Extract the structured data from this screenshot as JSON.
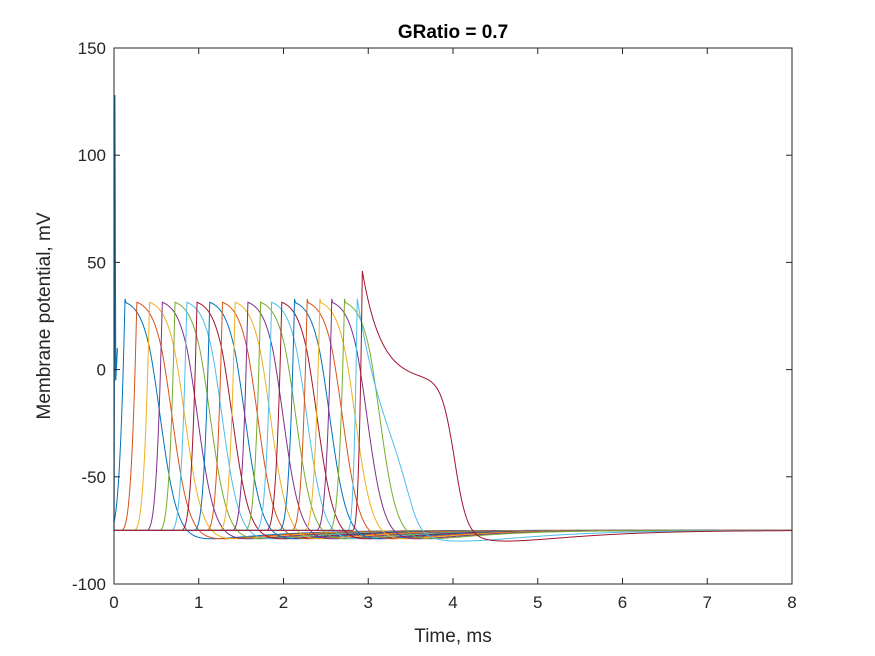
{
  "chart_data": {
    "type": "line",
    "title": "GRatio = 0.7",
    "xlabel": "Time, ms",
    "ylabel": "Membrane potential, mV",
    "xlim": [
      0,
      8
    ],
    "ylim": [
      -100,
      150
    ],
    "xticks": [
      0,
      1,
      2,
      3,
      4,
      5,
      6,
      7,
      8
    ],
    "yticks": [
      -100,
      -50,
      0,
      50,
      100,
      150
    ],
    "grid": false,
    "legend": "none",
    "resting_potential": -75,
    "stimulus_peak": 128,
    "series": [
      {
        "peak_time": 0.13,
        "peak_value": 33,
        "color": "#0072BD"
      },
      {
        "peak_time": 0.27,
        "peak_value": 33,
        "color": "#D95319"
      },
      {
        "peak_time": 0.42,
        "peak_value": 33,
        "color": "#EDB120"
      },
      {
        "peak_time": 0.57,
        "peak_value": 33,
        "color": "#7E2F8E"
      },
      {
        "peak_time": 0.72,
        "peak_value": 33,
        "color": "#77AC30"
      },
      {
        "peak_time": 0.86,
        "peak_value": 33,
        "color": "#4DBEEE"
      },
      {
        "peak_time": 0.98,
        "peak_value": 33,
        "color": "#A2142F"
      },
      {
        "peak_time": 1.13,
        "peak_value": 33,
        "color": "#0072BD"
      },
      {
        "peak_time": 1.28,
        "peak_value": 33,
        "color": "#D95319"
      },
      {
        "peak_time": 1.43,
        "peak_value": 33,
        "color": "#EDB120"
      },
      {
        "peak_time": 1.58,
        "peak_value": 33,
        "color": "#7E2F8E"
      },
      {
        "peak_time": 1.73,
        "peak_value": 33,
        "color": "#77AC30"
      },
      {
        "peak_time": 1.86,
        "peak_value": 33,
        "color": "#4DBEEE"
      },
      {
        "peak_time": 1.98,
        "peak_value": 33,
        "color": "#A2142F"
      },
      {
        "peak_time": 2.13,
        "peak_value": 33,
        "color": "#0072BD"
      },
      {
        "peak_time": 2.28,
        "peak_value": 33,
        "color": "#D95319"
      },
      {
        "peak_time": 2.43,
        "peak_value": 33,
        "color": "#EDB120"
      },
      {
        "peak_time": 2.57,
        "peak_value": 33,
        "color": "#7E2F8E"
      },
      {
        "peak_time": 2.72,
        "peak_value": 33,
        "color": "#77AC30"
      },
      {
        "peak_time": 2.87,
        "peak_value": 33,
        "color": "#4DBEEE"
      },
      {
        "peak_time": 2.93,
        "peak_value": 46,
        "color": "#A2142F"
      }
    ]
  }
}
